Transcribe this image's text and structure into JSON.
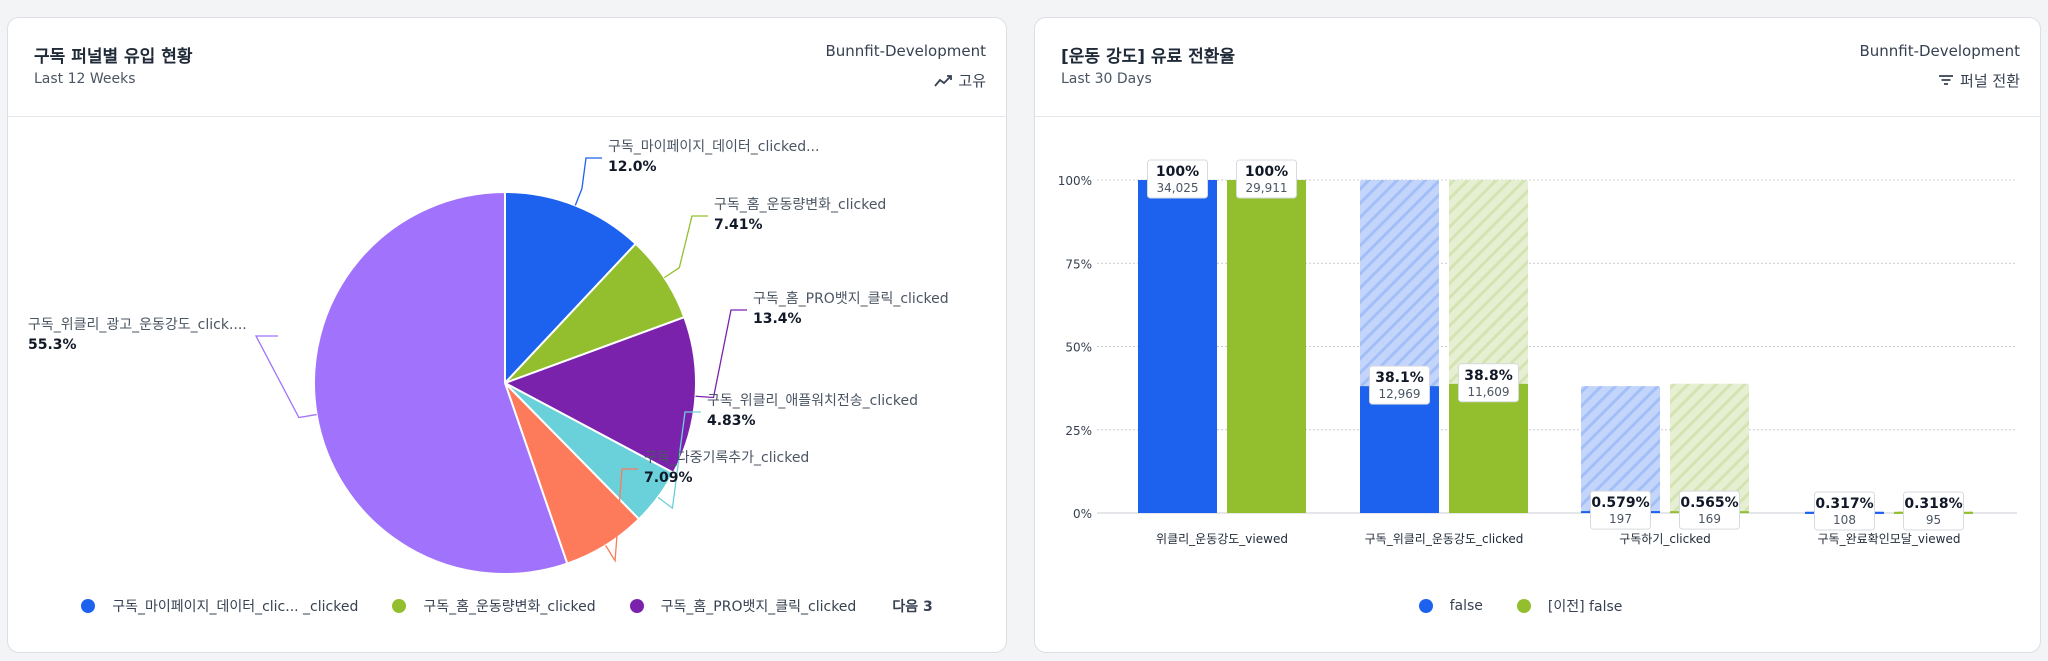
{
  "pie_card": {
    "title": "구독 퍼널별 유입 현황",
    "subtitle": "Last 12 Weeks",
    "project": "Bunnfit-Development",
    "metric_label": "고유",
    "legend": [
      {
        "label": "구독_마이페이지_데이터_clic... _clicked",
        "color": "#1d62ee"
      },
      {
        "label": "구독_홈_운동량변화_clicked",
        "color": "#93bf2f"
      },
      {
        "label": "구독_홈_PRO뱃지_클릭_clicked",
        "color": "#7b22ad"
      }
    ],
    "legend_next": "다음 3"
  },
  "funnel_card": {
    "title": "[운동 강도] 유료 전환율",
    "subtitle": "Last 30 Days",
    "project": "Bunnfit-Development",
    "metric_label": "퍼널 전환",
    "legend": [
      {
        "label": "false",
        "color": "#1d62ee"
      },
      {
        "label": "[이전] false",
        "color": "#93bf2f"
      }
    ]
  },
  "chart_data": [
    {
      "type": "pie",
      "title": "구독 퍼널별 유입 현황",
      "slices": [
        {
          "label": "구독_마이페이지_데이터_clicked...",
          "value": 12.0,
          "display": "12.0%",
          "color": "#1d62ee"
        },
        {
          "label": "구독_홈_운동량변화_clicked",
          "value": 7.41,
          "display": "7.41%",
          "color": "#93bf2f"
        },
        {
          "label": "구독_홈_PRO뱃지_클릭_clicked",
          "value": 13.4,
          "display": "13.4%",
          "color": "#7b22ad"
        },
        {
          "label": "구독_위클리_애플워치전송_clicked",
          "value": 4.83,
          "display": "4.83%",
          "color": "#6ad1da"
        },
        {
          "label": "구독_다중기록추가_clicked",
          "value": 7.09,
          "display": "7.09%",
          "color": "#fd7a5a"
        },
        {
          "label": "구독_위클리_광고_운동강도_click....",
          "value": 55.3,
          "display": "55.3%",
          "color": "#a172fb"
        }
      ]
    },
    {
      "type": "bar",
      "title": "[운동 강도] 유료 전환율",
      "categories": [
        "위클리_운동강도_viewed",
        "구독_위클리_운동강도_clicked",
        "구독하기_clicked",
        "구독_완료확인모달_viewed"
      ],
      "ylim": [
        0,
        100
      ],
      "yticks": [
        "0%",
        "25%",
        "50%",
        "75%",
        "100%"
      ],
      "grid": true,
      "series": [
        {
          "name": "false",
          "color": "#1d62ee",
          "values": [
            100,
            38.1,
            0.579,
            0.317
          ],
          "labels": [
            "100%",
            "38.1%",
            "0.579%",
            "0.317%"
          ],
          "counts": [
            "34,025",
            "12,969",
            "197",
            "108"
          ]
        },
        {
          "name": "[이전] false",
          "color": "#93bf2f",
          "values": [
            100,
            38.8,
            0.565,
            0.318
          ],
          "labels": [
            "100%",
            "38.8%",
            "0.565%",
            "0.318%"
          ],
          "counts": [
            "29,911",
            "11,609",
            "169",
            "95"
          ]
        }
      ]
    }
  ]
}
